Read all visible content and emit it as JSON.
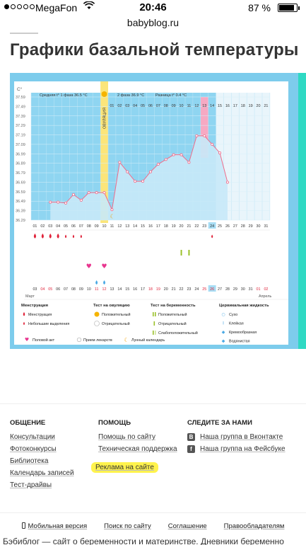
{
  "status_bar": {
    "carrier": "MegaFon",
    "time": "20:46",
    "battery": "87 %",
    "battery_level": 0.87
  },
  "url": "babyblog.ru",
  "page_title": "Графики базальной температуры",
  "chart": {
    "unit": "C°",
    "phase1": "Средняя t° 1 фаза 36.5 °C",
    "phase2": "2 фаза 36.9 °C",
    "diff": "Разница t° 0.4 °C",
    "ovulation_label": "ОВУЛЯЦИЯ",
    "y_ticks": [
      "37.59",
      "37.49",
      "37.39",
      "37.29",
      "37.19",
      "37.09",
      "36.99",
      "36.89",
      "36.79",
      "36.69",
      "36.59",
      "36.49",
      "36.39",
      "36.29"
    ],
    "cycle_days": [
      "01",
      "02",
      "03",
      "04",
      "05",
      "06",
      "07",
      "08",
      "09",
      "10",
      "11",
      "12",
      "13",
      "14",
      "15",
      "16",
      "17",
      "18",
      "19",
      "20",
      "21",
      "22",
      "23",
      "24",
      "25",
      "26",
      "27",
      "28",
      "29",
      "30",
      "31"
    ],
    "header_days": [
      "01",
      "02",
      "03",
      "04",
      "05",
      "06",
      "07",
      "08",
      "09",
      "10",
      "11",
      "12",
      "13",
      "14",
      "15",
      "16",
      "17",
      "18",
      "19",
      "20",
      "21"
    ],
    "dates": [
      "03",
      "04",
      "05",
      "06",
      "07",
      "08",
      "09",
      "10",
      "11",
      "12",
      "13",
      "14",
      "15",
      "16",
      "17",
      "18",
      "19",
      "20",
      "21",
      "22",
      "23",
      "24",
      "25",
      "26",
      "27",
      "28",
      "29",
      "30",
      "31",
      "01",
      "02"
    ],
    "red_dates": [
      "04",
      "05",
      "11",
      "12",
      "18",
      "19",
      "25",
      "26",
      "01",
      "02"
    ],
    "month_start": "Март",
    "month_end": "Апрель",
    "temps": [
      36.48,
      36.48,
      36.47,
      36.56,
      36.5,
      36.58,
      36.58,
      36.58,
      36.4,
      36.9,
      36.8,
      36.7,
      36.7,
      36.8,
      36.88,
      36.93,
      36.98,
      36.98,
      36.9,
      37.18,
      37.18,
      37.09,
      37.0,
      36.69
    ],
    "menstruation": "heavy: days 1-4, light: days 5-7",
    "legend": {
      "col1_title": "Менструация",
      "col1": [
        "Менструация",
        "Небольшие выделения"
      ],
      "col2_title": "Тест на овуляцию",
      "col2": [
        "Положительный",
        "Отрицательный"
      ],
      "col3_title": "Тест на беременность",
      "col3": [
        "Положительный",
        "Отрицательный",
        "Слабоположительный"
      ],
      "col4_title": "Цервикальная жидкость",
      "col4": [
        "Сухо",
        "Клейкая",
        "Кремообразная",
        "Водянистая",
        "Яичный белок"
      ],
      "bottom": [
        "Половой акт",
        "Прием лекарств",
        "Лунный календарь"
      ]
    },
    "colors": {
      "frame": "#7dccec",
      "accent_teal": "#2fd9c3",
      "ovulation": "#fbe57a",
      "pink": "#f6a9c3",
      "line": "#f06c8a",
      "fill": "#c8e9f8"
    }
  },
  "footer": {
    "col1_title": "ОБЩЕНИЕ",
    "col1_links": [
      "Консультации",
      "Фотоконкурсы",
      "Библиотека",
      "Календарь записей",
      "Тест-драйвы"
    ],
    "col2_title": "ПОМОЩЬ",
    "col2_links": [
      "Помощь по сайту",
      "Техническая поддержка"
    ],
    "col2_highlight": "Реклама на сайте",
    "col3_title": "СЛЕДИТЕ ЗА НАМИ",
    "col3_links": [
      "Наша группа в Вконтакте",
      "Наша группа на Фейсбуке"
    ],
    "bottom_links": [
      "Мобильная версия",
      "Поиск по сайту",
      "Соглашение",
      "Правообладателям"
    ],
    "tagline": "Бэбиблог — сайт о беременности и материнстве. Дневники беременно"
  }
}
